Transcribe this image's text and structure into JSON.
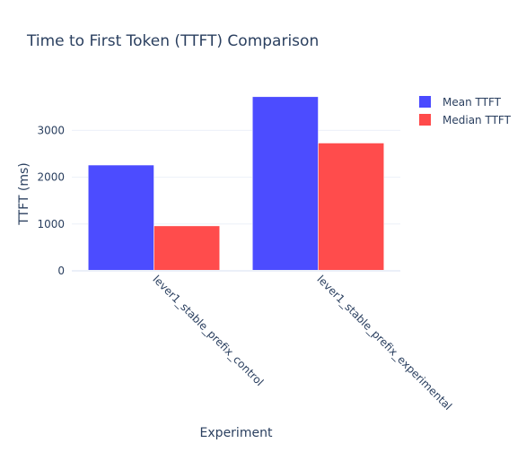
{
  "chart_data": {
    "type": "bar",
    "title": "Time to First Token (TTFT) Comparison",
    "xlabel": "Experiment",
    "ylabel": "TTFT (ms)",
    "categories": [
      "lever1_stable_prefix_control",
      "lever1_stable_prefix_experimental"
    ],
    "series": [
      {
        "name": "Mean TTFT",
        "color": "#4a4aff",
        "values": [
          2260,
          3720
        ]
      },
      {
        "name": "Median TTFT",
        "color": "#ff4a4a",
        "values": [
          960,
          2730
        ]
      }
    ],
    "ylim": [
      0,
      3870
    ],
    "yticks": [
      0,
      1000,
      2000,
      3000
    ],
    "ytick_labels": [
      "0",
      "1000",
      "2000",
      "3000"
    ],
    "grid": true,
    "legend_position": "top-right"
  }
}
